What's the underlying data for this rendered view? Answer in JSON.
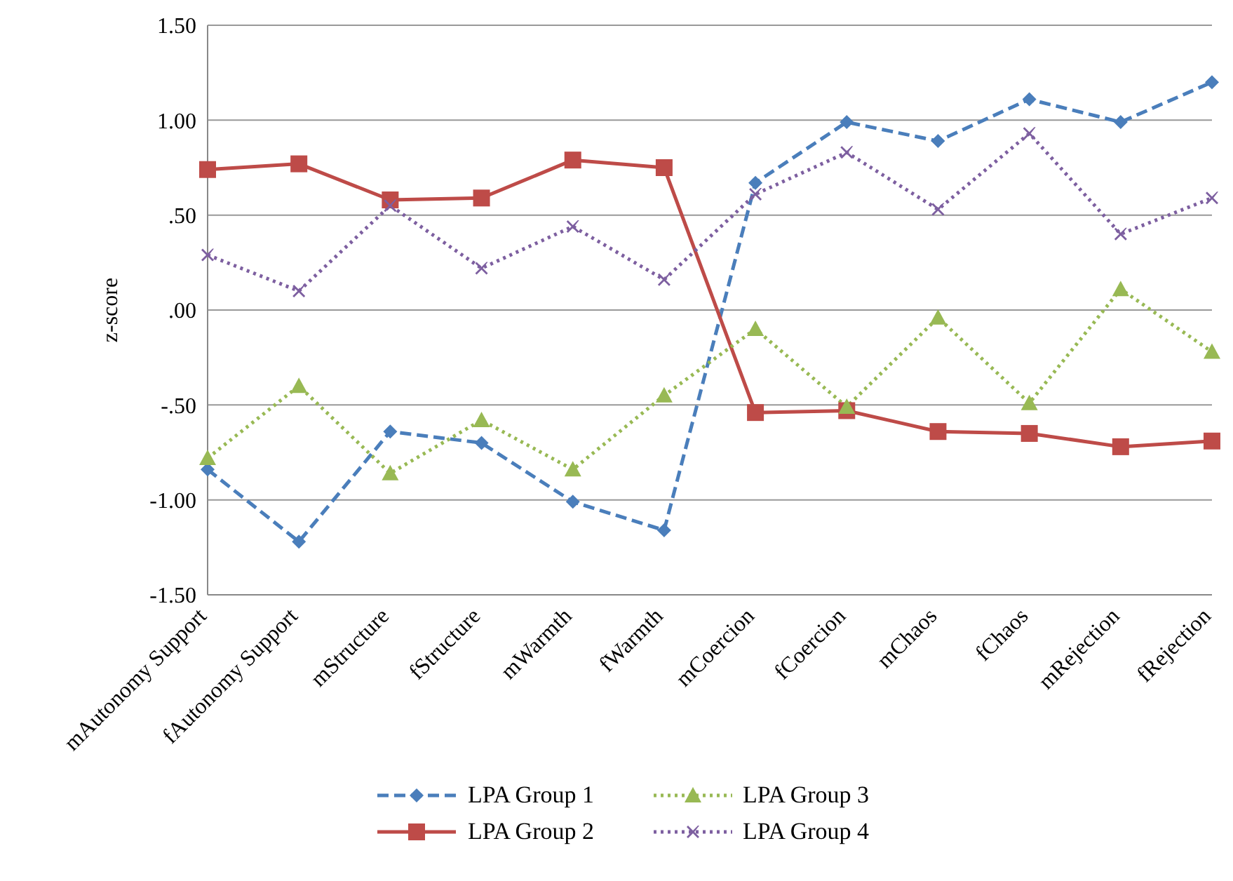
{
  "chart_data": {
    "type": "line",
    "ylabel": "z-score",
    "categories": [
      "mAutonomy Support",
      "fAutonomy Support",
      "mStructure",
      "fStructure",
      "mWarmth",
      "fWarmth",
      "mCoercion",
      "fCoercion",
      "mChaos",
      "fChaos",
      "mRejection",
      "fRejection"
    ],
    "series": [
      {
        "name": "LPA Group 1",
        "color": "#4a7ebb",
        "marker": "diamond",
        "line_style": "dashed",
        "values": [
          -0.84,
          -1.22,
          -0.64,
          -0.7,
          -1.01,
          -1.16,
          0.67,
          0.99,
          0.89,
          1.11,
          0.99,
          1.2
        ]
      },
      {
        "name": "LPA Group 2",
        "color": "#be4b48",
        "marker": "square",
        "line_style": "solid",
        "values": [
          0.74,
          0.77,
          0.58,
          0.59,
          0.79,
          0.75,
          -0.54,
          -0.53,
          -0.64,
          -0.65,
          -0.72,
          -0.69
        ]
      },
      {
        "name": "LPA Group 3",
        "color": "#98b954",
        "marker": "triangle",
        "line_style": "dotted",
        "values": [
          -0.78,
          -0.4,
          -0.86,
          -0.58,
          -0.84,
          -0.45,
          -0.1,
          -0.51,
          -0.04,
          -0.49,
          0.11,
          -0.22
        ]
      },
      {
        "name": "LPA Group 4",
        "color": "#7d5fa0",
        "marker": "cross",
        "line_style": "dotted",
        "values": [
          0.29,
          0.1,
          0.55,
          0.22,
          0.44,
          0.16,
          0.61,
          0.83,
          0.53,
          0.93,
          0.4,
          0.59
        ]
      }
    ],
    "ylim": [
      -1.5,
      1.5
    ],
    "yticks": [
      {
        "value": -1.5,
        "label": "-1.50"
      },
      {
        "value": -1,
        "label": "-1.00"
      },
      {
        "value": -0.5,
        "label": "-.50"
      },
      {
        "value": 0,
        "label": ".00"
      },
      {
        "value": 0.5,
        "label": ".50"
      },
      {
        "value": 1,
        "label": "1.00"
      },
      {
        "value": 1.5,
        "label": "1.50"
      }
    ],
    "grid": "y",
    "legend": "bottom"
  }
}
